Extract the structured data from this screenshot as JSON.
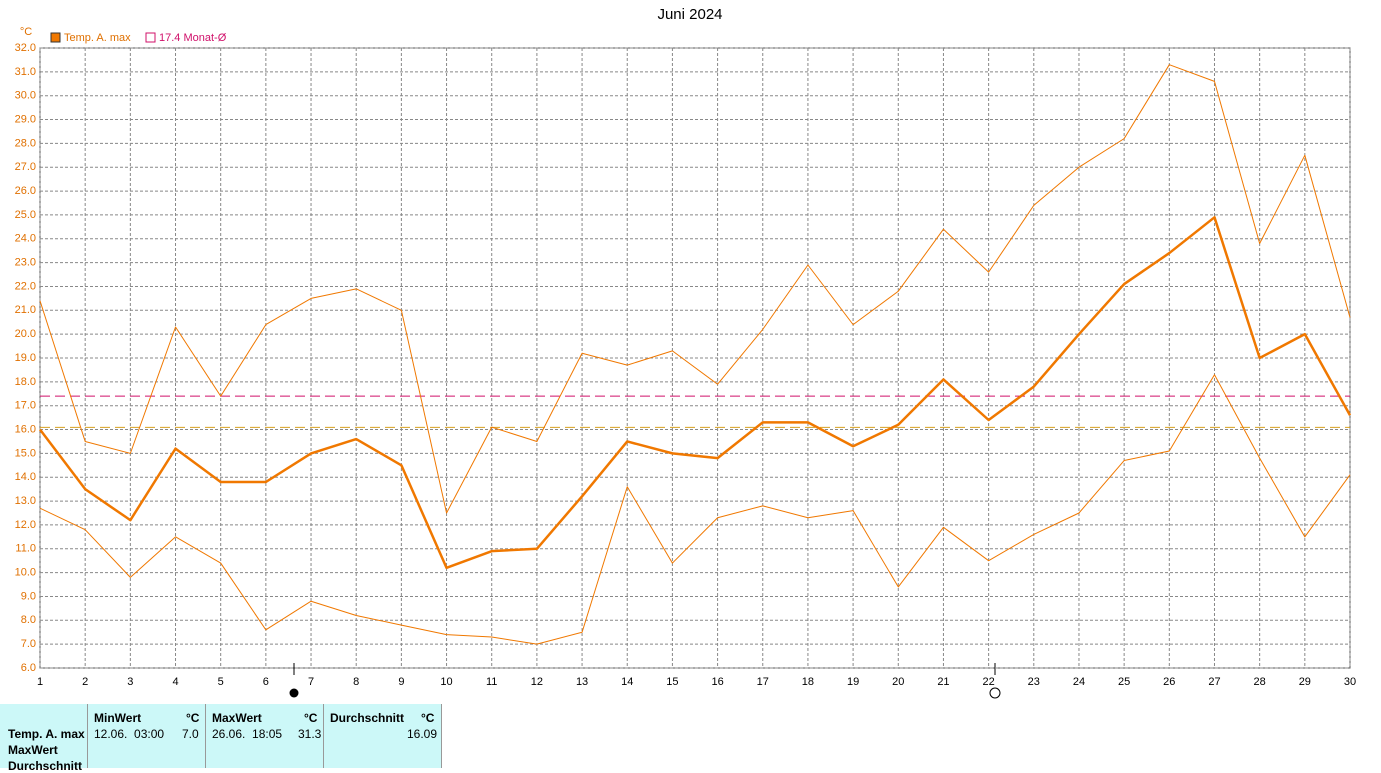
{
  "chart_data": {
    "type": "line",
    "title": "Juni 2024",
    "y_label": "°C",
    "x": [
      1,
      2,
      3,
      4,
      5,
      6,
      7,
      8,
      9,
      10,
      11,
      12,
      13,
      14,
      15,
      16,
      17,
      18,
      19,
      20,
      21,
      22,
      23,
      24,
      25,
      26,
      27,
      28,
      29,
      30
    ],
    "xlim": [
      1,
      30
    ],
    "xticks": [
      1,
      2,
      3,
      4,
      5,
      6,
      7,
      8,
      9,
      10,
      11,
      12,
      13,
      14,
      15,
      16,
      17,
      18,
      19,
      20,
      21,
      22,
      23,
      24,
      25,
      26,
      27,
      28,
      29,
      30
    ],
    "ylim": [
      6,
      32
    ],
    "yticks": [
      {
        "value": 6,
        "label": "6.0"
      },
      {
        "value": 7,
        "label": "7.0"
      },
      {
        "value": 8,
        "label": "8.0"
      },
      {
        "value": 9,
        "label": "9.0"
      },
      {
        "value": 10,
        "label": "10.0"
      },
      {
        "value": 11,
        "label": "11.0"
      },
      {
        "value": 12,
        "label": "12.0"
      },
      {
        "value": 13,
        "label": "13.0"
      },
      {
        "value": 14,
        "label": "14.0"
      },
      {
        "value": 15,
        "label": "15.0"
      },
      {
        "value": 16,
        "label": "16.0"
      },
      {
        "value": 17,
        "label": "17.0"
      },
      {
        "value": 18,
        "label": "18.0"
      },
      {
        "value": 19,
        "label": "19.0"
      },
      {
        "value": 20,
        "label": "20.0"
      },
      {
        "value": 21,
        "label": "21.0"
      },
      {
        "value": 22,
        "label": "22.0"
      },
      {
        "value": 23,
        "label": "23.0"
      },
      {
        "value": 24,
        "label": "24.0"
      },
      {
        "value": 25,
        "label": "25.0"
      },
      {
        "value": 26,
        "label": "26.0"
      },
      {
        "value": 27,
        "label": "27.0"
      },
      {
        "value": 28,
        "label": "28.0"
      },
      {
        "value": 29,
        "label": "29.0"
      },
      {
        "value": 30,
        "label": "30.0"
      },
      {
        "value": 31,
        "label": "31.0"
      },
      {
        "value": 32,
        "label": "32.0"
      }
    ],
    "grid": true,
    "series": [
      {
        "name": "Temp. A. max",
        "color": "#f07800",
        "width": 2.5,
        "values": [
          16.0,
          13.5,
          12.2,
          15.2,
          13.8,
          13.8,
          15.0,
          15.6,
          14.5,
          10.2,
          10.9,
          11.0,
          13.2,
          15.5,
          15.0,
          14.8,
          16.3,
          16.3,
          15.3,
          16.2,
          18.1,
          16.4,
          17.8,
          20.0,
          22.1,
          23.4,
          24.9,
          19.0,
          20.0,
          16.6
        ]
      },
      {
        "color": "#f07800",
        "width": 1,
        "values": [
          21.4,
          15.5,
          15.0,
          20.3,
          17.4,
          20.4,
          21.5,
          21.9,
          21.0,
          12.5,
          16.1,
          15.5,
          19.2,
          18.7,
          19.3,
          17.9,
          20.2,
          22.9,
          20.4,
          21.8,
          24.4,
          22.6,
          25.4,
          27.0,
          28.2,
          31.3,
          30.6,
          23.8,
          27.5,
          20.7
        ]
      },
      {
        "color": "#f07800",
        "width": 1,
        "values": [
          12.7,
          11.8,
          9.8,
          11.5,
          10.4,
          7.6,
          8.8,
          8.2,
          7.8,
          7.4,
          7.3,
          7.0,
          7.5,
          13.6,
          10.4,
          12.3,
          12.8,
          12.3,
          12.6,
          9.4,
          11.9,
          10.5,
          11.6,
          12.5,
          14.7,
          15.1,
          18.3,
          14.8,
          11.5,
          14.1
        ]
      }
    ],
    "reference_lines": [
      {
        "value": 17.4,
        "label": "17.4 Monat-Ø",
        "color": "#d0106a"
      },
      {
        "value": 16.09,
        "color": "#d8a020"
      }
    ]
  },
  "table": {
    "header": [
      "MinWert",
      "°C",
      "MaxWert",
      "°C",
      "Durchschnitt",
      "°C"
    ],
    "rows": [
      [
        "Temp. A. max",
        "12.06.  03:00",
        "7.0",
        "26.06.  18:05",
        "31.3",
        "16.09"
      ],
      [
        "MaxWert"
      ],
      [
        "Durchschnitt"
      ]
    ]
  }
}
